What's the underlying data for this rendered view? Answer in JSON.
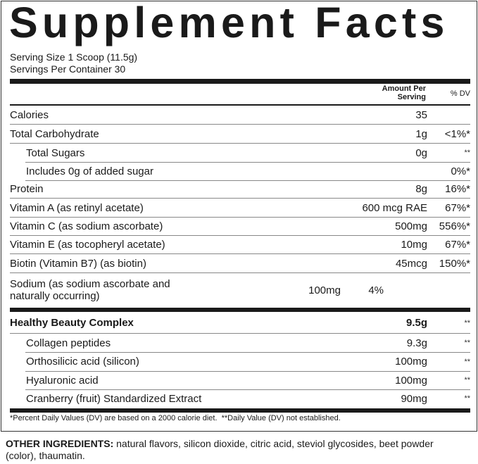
{
  "title": "Supplement Facts",
  "serving_size": "Serving Size 1 Scoop (11.5g)",
  "servings_per_container": "Servings Per Container 30",
  "header": {
    "amount": "Amount Per Serving",
    "dv": "% DV"
  },
  "nutrients": [
    {
      "name": "Calories",
      "amount": "35",
      "dv": ""
    },
    {
      "name": "Total Carbohydrate",
      "amount": "1g",
      "dv": "<1%*"
    },
    {
      "name": "Total Sugars",
      "amount": "0g",
      "dv": "**"
    },
    {
      "name": "Includes 0g of added sugar",
      "amount": "",
      "dv": "0%*"
    },
    {
      "name": "Protein",
      "amount": "8g",
      "dv": "16%*"
    },
    {
      "name": "Vitamin A (as retinyl acetate)",
      "amount": "600 mcg RAE",
      "dv": "67%*"
    },
    {
      "name": "Vitamin C (as sodium ascorbate)",
      "amount": "500mg",
      "dv": "556%*"
    },
    {
      "name": "Vitamin E (as tocopheryl acetate)",
      "amount": "10mg",
      "dv": "67%*"
    },
    {
      "name": "Biotin (Vitamin B7) (as biotin)",
      "amount": "45mcg",
      "dv": "150%*"
    },
    {
      "name": "Sodium (as sodium ascorbate and naturally occurring)",
      "amount": "100mg",
      "dv": "4%"
    }
  ],
  "complex": {
    "name": "Healthy Beauty Complex",
    "amount": "9.5g",
    "dv": "**",
    "items": [
      {
        "name": "Collagen peptides",
        "amount": "9.3g",
        "dv": "**"
      },
      {
        "name": "Orthosilicic acid (silicon)",
        "amount": "100mg",
        "dv": "**"
      },
      {
        "name": "Hyaluronic acid",
        "amount": "100mg",
        "dv": "**"
      },
      {
        "name": "Cranberry (fruit) Standardized Extract",
        "amount": "90mg",
        "dv": "**"
      }
    ]
  },
  "footnote": "*Percent Daily Values (DV) are based on a 2000 calorie diet.  **Daily Value (DV) not established.",
  "other_ingredients": {
    "label": "OTHER INGREDIENTS:",
    "text": " natural flavors, silicon dioxide, citric acid, steviol glycosides, beet powder (color), thaumatin."
  }
}
